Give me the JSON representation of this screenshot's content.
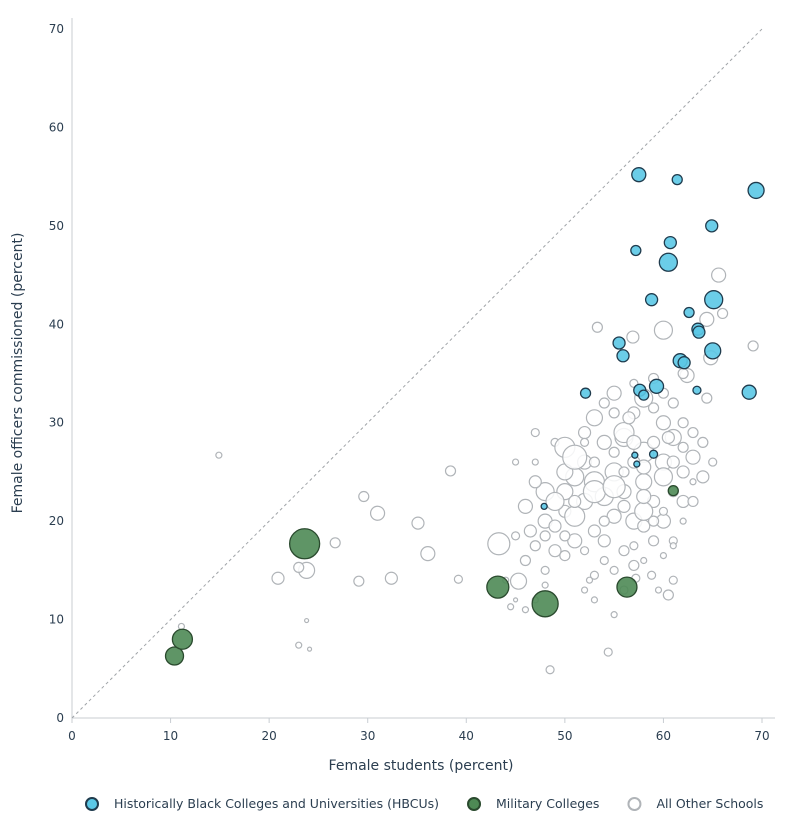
{
  "chart_data": {
    "type": "scatter",
    "title": "",
    "xlabel": "Female students (percent)",
    "ylabel": "Female officers commissioned (percent)",
    "xlim": [
      0,
      70
    ],
    "ylim": [
      0,
      70
    ],
    "xticks": [
      0,
      10,
      20,
      30,
      40,
      50,
      60,
      70
    ],
    "yticks": [
      0,
      10,
      20,
      30,
      40,
      50,
      60,
      70
    ],
    "grid": false,
    "reference_line": "y = x (dashed)",
    "legend_position": "bottom",
    "point_format": [
      "x",
      "y",
      "relative bubble size"
    ],
    "series": [
      {
        "name": "Historically Black Colleges and Universities (HBCUs)",
        "fill": "#5bc8e6",
        "stroke": "#1f3b4d",
        "points": [
          [
            57.5,
            55.2,
            7
          ],
          [
            61.4,
            54.7,
            5
          ],
          [
            69.4,
            53.6,
            8
          ],
          [
            64.9,
            50.0,
            6
          ],
          [
            57.2,
            47.5,
            5
          ],
          [
            60.7,
            48.3,
            6
          ],
          [
            60.5,
            46.3,
            9
          ],
          [
            58.8,
            42.5,
            6
          ],
          [
            65.1,
            42.5,
            9
          ],
          [
            62.6,
            41.2,
            5
          ],
          [
            63.5,
            39.5,
            6
          ],
          [
            63.6,
            39.2,
            6
          ],
          [
            55.5,
            38.1,
            6
          ],
          [
            55.9,
            36.8,
            6
          ],
          [
            65.0,
            37.3,
            8
          ],
          [
            61.7,
            36.3,
            7
          ],
          [
            62.1,
            36.1,
            6
          ],
          [
            57.6,
            33.3,
            6
          ],
          [
            58.0,
            32.8,
            5
          ],
          [
            59.3,
            33.7,
            7
          ],
          [
            63.4,
            33.3,
            4
          ],
          [
            68.7,
            33.1,
            7
          ],
          [
            52.1,
            33.0,
            5
          ],
          [
            57.1,
            26.7,
            3
          ],
          [
            57.3,
            25.8,
            3
          ],
          [
            59.0,
            26.8,
            4
          ],
          [
            47.9,
            21.5,
            3
          ]
        ]
      },
      {
        "name": "Military Colleges",
        "fill": "#4e8a55",
        "stroke": "#2a4a2e",
        "points": [
          [
            10.4,
            6.3,
            9
          ],
          [
            11.2,
            8.0,
            10
          ],
          [
            23.6,
            17.7,
            15
          ],
          [
            43.2,
            13.3,
            11
          ],
          [
            48.0,
            11.6,
            13
          ],
          [
            56.3,
            13.3,
            10
          ],
          [
            61.0,
            23.1,
            5
          ]
        ]
      },
      {
        "name": "All Other Schools",
        "fill": "#ffffff",
        "stroke": "#b0b4b8",
        "points": [
          [
            14.9,
            26.7,
            3
          ],
          [
            38.4,
            25.1,
            5
          ],
          [
            29.6,
            22.5,
            5
          ],
          [
            31.0,
            20.8,
            7
          ],
          [
            35.1,
            19.8,
            6
          ],
          [
            26.7,
            17.8,
            5
          ],
          [
            23.8,
            15.0,
            8
          ],
          [
            23.0,
            15.3,
            5
          ],
          [
            20.9,
            14.2,
            6
          ],
          [
            29.1,
            13.9,
            5
          ],
          [
            32.4,
            14.2,
            6
          ],
          [
            36.1,
            16.7,
            7
          ],
          [
            39.2,
            14.1,
            4
          ],
          [
            23.8,
            9.9,
            2
          ],
          [
            23.0,
            7.4,
            3
          ],
          [
            24.1,
            7.0,
            2
          ],
          [
            11.1,
            9.3,
            3
          ],
          [
            48.5,
            4.9,
            4
          ],
          [
            54.4,
            6.7,
            4
          ],
          [
            43.3,
            17.7,
            11
          ],
          [
            45.3,
            13.9,
            8
          ],
          [
            44.5,
            11.3,
            3
          ],
          [
            53.3,
            39.7,
            5
          ],
          [
            56.9,
            38.7,
            6
          ],
          [
            65.6,
            45.0,
            7
          ],
          [
            66.0,
            41.1,
            5
          ],
          [
            64.4,
            40.5,
            7
          ],
          [
            60.0,
            39.4,
            9
          ],
          [
            69.1,
            37.8,
            5
          ],
          [
            64.8,
            36.6,
            7
          ],
          [
            62.4,
            34.8,
            7
          ],
          [
            64.4,
            32.5,
            5
          ],
          [
            60.5,
            12.5,
            5
          ],
          [
            58.8,
            14.5,
            4
          ],
          [
            57.2,
            14.2,
            4
          ],
          [
            47,
            26,
            3
          ],
          [
            49,
            28,
            4
          ],
          [
            50,
            27.5,
            10
          ],
          [
            52,
            29,
            6
          ],
          [
            53,
            30.5,
            8
          ],
          [
            54,
            32,
            5
          ],
          [
            55,
            33,
            7
          ],
          [
            57,
            31,
            6
          ],
          [
            58,
            32.5,
            9
          ],
          [
            59,
            31.5,
            5
          ],
          [
            60,
            30,
            7
          ],
          [
            61,
            28.5,
            8
          ],
          [
            62,
            27.5,
            5
          ],
          [
            63,
            26.5,
            7
          ],
          [
            64,
            28,
            5
          ],
          [
            62,
            25,
            6
          ],
          [
            60,
            26,
            8
          ],
          [
            58,
            27,
            10
          ],
          [
            56,
            28.5,
            9
          ],
          [
            54,
            28,
            7
          ],
          [
            52,
            26,
            7
          ],
          [
            51,
            24.5,
            9
          ],
          [
            50,
            23,
            8
          ],
          [
            48,
            23,
            9
          ],
          [
            47,
            24,
            6
          ],
          [
            46,
            21.5,
            7
          ],
          [
            48,
            20,
            7
          ],
          [
            50,
            21,
            6
          ],
          [
            52,
            22,
            8
          ],
          [
            53,
            24,
            10
          ],
          [
            55,
            25,
            9
          ],
          [
            56,
            23,
            7
          ],
          [
            58,
            24,
            8
          ],
          [
            59,
            22,
            6
          ],
          [
            60,
            24.5,
            9
          ],
          [
            61,
            23,
            5
          ],
          [
            62,
            22,
            6
          ],
          [
            63,
            22,
            5
          ],
          [
            64,
            24.5,
            6
          ],
          [
            65,
            26,
            4
          ],
          [
            57,
            20,
            8
          ],
          [
            55,
            20.5,
            7
          ],
          [
            53,
            19,
            6
          ],
          [
            51,
            18,
            7
          ],
          [
            49,
            17,
            6
          ],
          [
            47,
            17.5,
            5
          ],
          [
            45,
            18.5,
            4
          ],
          [
            46,
            16,
            5
          ],
          [
            48,
            15,
            4
          ],
          [
            50,
            16.5,
            5
          ],
          [
            52,
            17,
            4
          ],
          [
            54,
            18,
            6
          ],
          [
            56,
            17,
            5
          ],
          [
            58,
            19.5,
            6
          ],
          [
            59,
            18,
            5
          ],
          [
            60,
            20,
            7
          ],
          [
            61,
            18,
            4
          ],
          [
            57,
            15.5,
            5
          ],
          [
            55,
            15,
            4
          ],
          [
            53,
            14.5,
            4
          ],
          [
            52,
            13,
            3
          ],
          [
            56,
            13,
            4
          ],
          [
            58,
            16,
            3
          ],
          [
            60,
            16.5,
            3
          ],
          [
            48,
            13.5,
            3
          ],
          [
            46,
            11,
            3
          ],
          [
            47,
            12,
            3
          ],
          [
            44,
            14,
            3
          ],
          [
            45,
            12,
            2
          ],
          [
            53,
            12,
            3
          ],
          [
            55,
            10.5,
            3
          ],
          [
            56,
            29,
            10
          ],
          [
            57,
            28,
            7
          ],
          [
            50,
            25,
            8
          ],
          [
            49,
            22,
            9
          ],
          [
            51,
            20.5,
            10
          ],
          [
            54,
            22.5,
            9
          ],
          [
            55,
            27,
            5
          ],
          [
            59,
            28,
            6
          ],
          [
            61,
            26,
            6
          ],
          [
            62,
            30,
            5
          ],
          [
            63,
            29,
            5
          ],
          [
            57,
            26,
            6
          ],
          [
            58,
            25.5,
            7
          ],
          [
            56,
            25,
            5
          ],
          [
            52,
            28,
            4
          ],
          [
            53,
            26,
            5
          ],
          [
            60,
            33,
            5
          ],
          [
            61,
            32,
            5
          ],
          [
            59,
            34.5,
            5
          ],
          [
            62,
            35,
            5
          ],
          [
            55,
            31,
            5
          ],
          [
            57,
            34,
            4
          ],
          [
            49,
            19.5,
            6
          ],
          [
            50,
            18.5,
            5
          ],
          [
            51,
            22,
            6
          ],
          [
            54,
            20,
            5
          ],
          [
            56,
            21.5,
            6
          ],
          [
            59,
            20,
            5
          ],
          [
            45,
            26,
            3
          ],
          [
            47,
            29,
            4
          ],
          [
            56.5,
            30.5,
            6
          ],
          [
            60.5,
            28.5,
            6
          ],
          [
            58,
            21,
            9
          ],
          [
            53,
            23,
            11
          ],
          [
            51,
            26.5,
            12
          ],
          [
            55,
            23.5,
            11
          ],
          [
            58,
            22.5,
            7
          ],
          [
            48,
            18.5,
            5
          ],
          [
            46.5,
            19,
            6
          ],
          [
            52.5,
            14,
            3
          ],
          [
            54,
            16,
            4
          ],
          [
            62,
            20,
            3
          ],
          [
            63,
            24,
            3
          ],
          [
            60,
            21,
            4
          ],
          [
            61,
            14,
            4
          ],
          [
            59.5,
            13,
            3
          ],
          [
            61,
            17.5,
            3
          ],
          [
            57,
            17.5,
            4
          ]
        ]
      }
    ]
  }
}
